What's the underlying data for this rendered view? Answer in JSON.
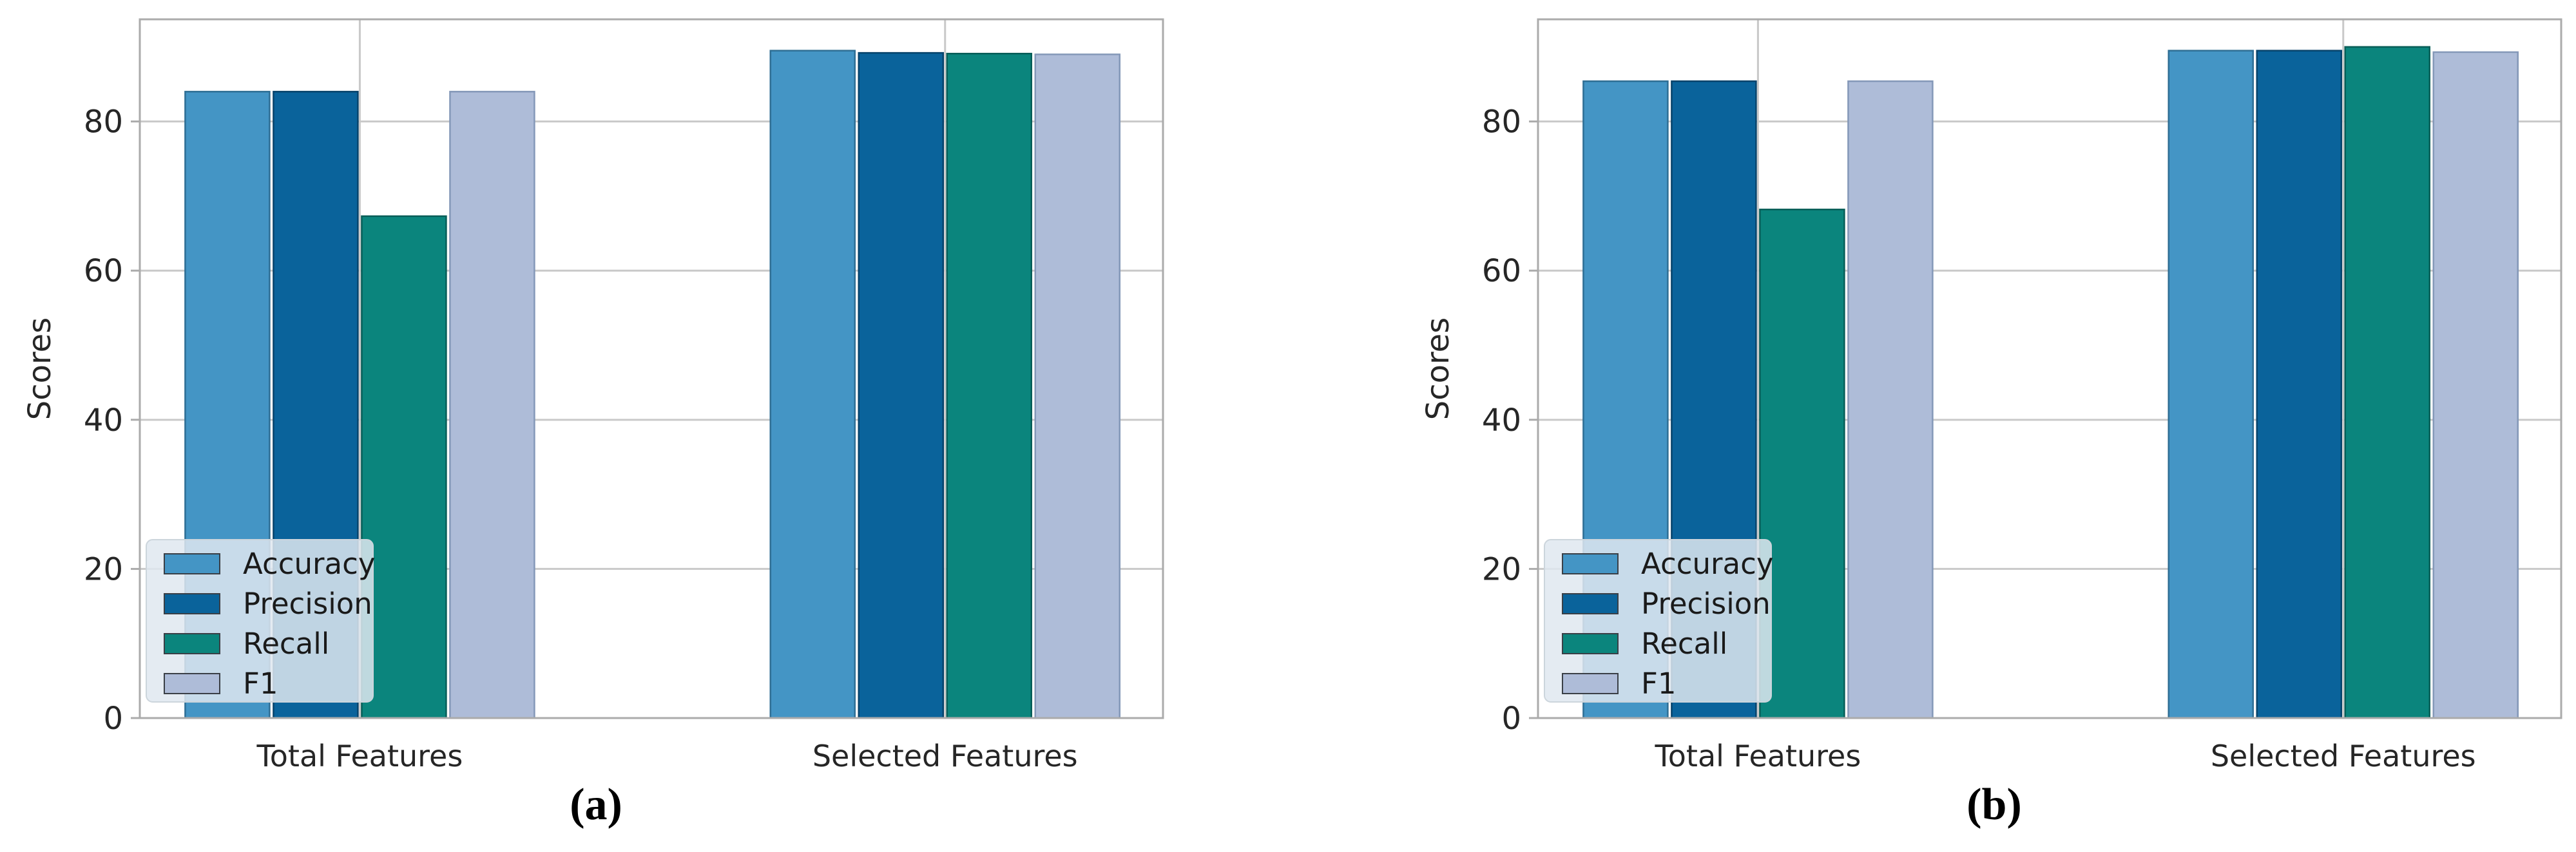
{
  "page": {
    "background_color": "#ffffff",
    "description_names": {
      "left_panel": "bar-chart-panel-a",
      "right_panel": "bar-chart-panel-b"
    }
  },
  "styles": {
    "grid_color": "#c9c9c9",
    "spine_color": "#ababab",
    "tick_label_color": "#262626",
    "legend_bg": "#dfe7f0",
    "legend_border": "#ccd5dc",
    "legend_text_color": "#1a1a1a",
    "caption_color": "#000000"
  },
  "chart_data": [
    {
      "panel": "a",
      "caption": "(a)",
      "type": "bar",
      "title": "",
      "categories": [
        "Total Features",
        "Selected Features"
      ],
      "series": [
        {
          "name": "Accuracy",
          "color": "#4495c5",
          "edge_color": "#2e6e94",
          "values": [
            84.0,
            89.5
          ]
        },
        {
          "name": "Precision",
          "color": "#0a639b",
          "edge_color": "#07436b",
          "values": [
            84.0,
            89.2
          ]
        },
        {
          "name": "Recall",
          "color": "#0b857d",
          "edge_color": "#075e58",
          "values": [
            67.3,
            89.1
          ]
        },
        {
          "name": "F1",
          "color": "#aebcd8",
          "edge_color": "#8498b8",
          "values": [
            84.0,
            89.0
          ]
        }
      ],
      "xlabel": "",
      "ylabel": "Scores",
      "yticks": [
        0,
        20,
        40,
        60,
        80
      ],
      "ylim": [
        0,
        93.7
      ],
      "grid": true,
      "legend_position": "lower left"
    },
    {
      "panel": "b",
      "caption": "(b)",
      "type": "bar",
      "title": "",
      "categories": [
        "Total Features",
        "Selected Features"
      ],
      "series": [
        {
          "name": "Accuracy",
          "color": "#4495c5",
          "edge_color": "#2e6e94",
          "values": [
            85.4,
            89.5
          ]
        },
        {
          "name": "Precision",
          "color": "#0a639b",
          "edge_color": "#07436b",
          "values": [
            85.4,
            89.5
          ]
        },
        {
          "name": "Recall",
          "color": "#0b857d",
          "edge_color": "#075e58",
          "values": [
            68.2,
            90.0
          ]
        },
        {
          "name": "F1",
          "color": "#aebcd8",
          "edge_color": "#8498b8",
          "values": [
            85.4,
            89.3
          ]
        }
      ],
      "xlabel": "",
      "ylabel": "Scores",
      "yticks": [
        0,
        20,
        40,
        60,
        80
      ],
      "ylim": [
        0,
        93.7
      ],
      "grid": true,
      "legend_position": "lower left"
    }
  ]
}
